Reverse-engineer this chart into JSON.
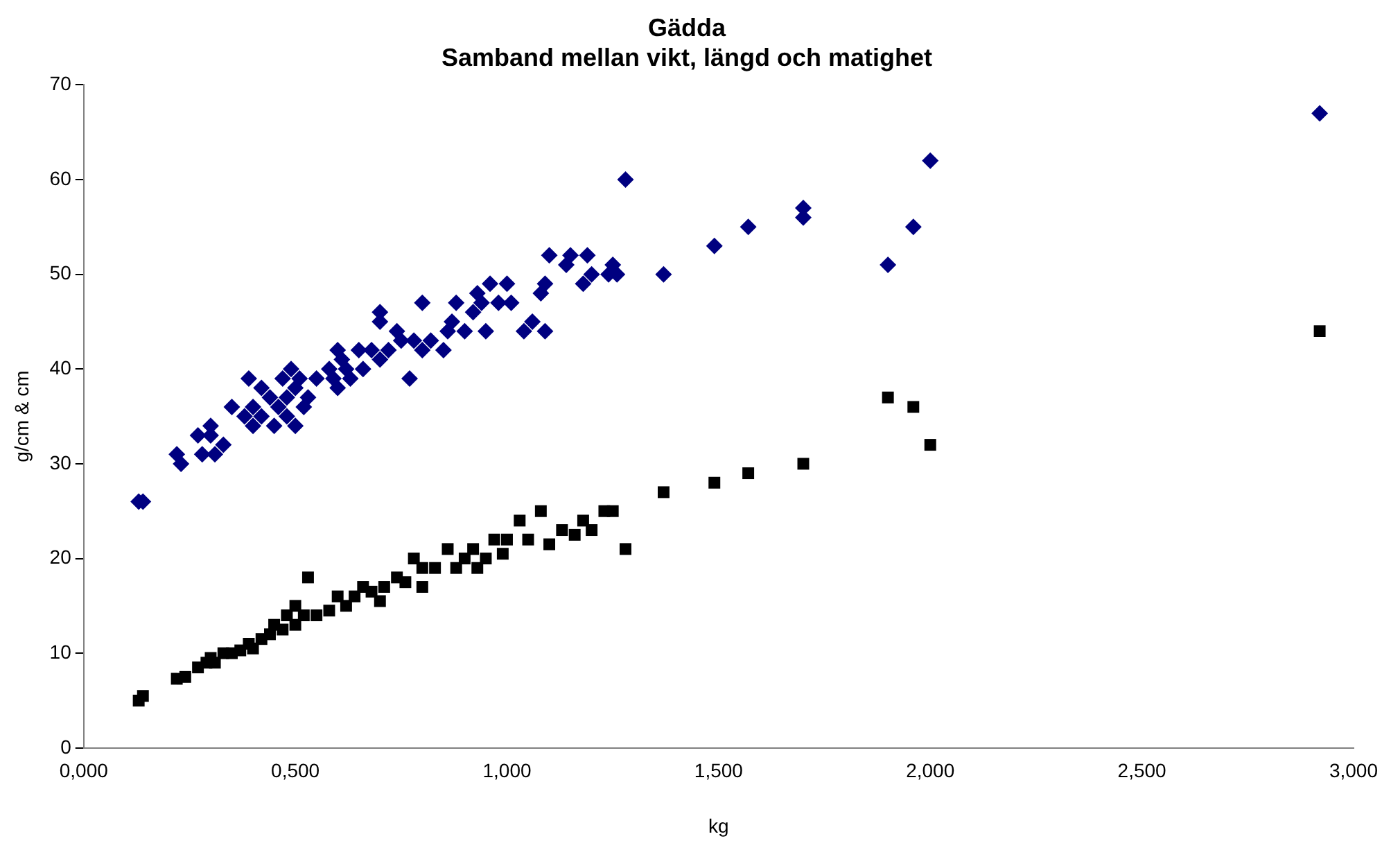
{
  "chart_data": {
    "type": "scatter",
    "title": "Gädda",
    "subtitle": "Samband mellan vikt, längd och matighet",
    "xlabel": "kg",
    "ylabel": "g/cm & cm",
    "xlim": [
      0,
      3
    ],
    "ylim": [
      0,
      70
    ],
    "xticks": [
      {
        "value": 0,
        "label": "0,000"
      },
      {
        "value": 0.5,
        "label": "0,500"
      },
      {
        "value": 1,
        "label": "1,000"
      },
      {
        "value": 1.5,
        "label": "1,500"
      },
      {
        "value": 2,
        "label": "2,000"
      },
      {
        "value": 2.5,
        "label": "2,500"
      },
      {
        "value": 3,
        "label": "3,000"
      }
    ],
    "yticks": [
      0,
      10,
      20,
      30,
      40,
      50,
      60,
      70
    ],
    "grid": false,
    "legend": false,
    "series": [
      {
        "color": "#000080",
        "marker": "diamond",
        "x": [
          0.13,
          0.14,
          0.22,
          0.23,
          0.27,
          0.28,
          0.3,
          0.3,
          0.31,
          0.33,
          0.35,
          0.38,
          0.39,
          0.4,
          0.4,
          0.42,
          0.42,
          0.44,
          0.45,
          0.46,
          0.47,
          0.48,
          0.48,
          0.49,
          0.5,
          0.5,
          0.51,
          0.52,
          0.53,
          0.55,
          0.58,
          0.59,
          0.6,
          0.6,
          0.61,
          0.62,
          0.63,
          0.65,
          0.66,
          0.68,
          0.7,
          0.7,
          0.7,
          0.72,
          0.74,
          0.75,
          0.77,
          0.78,
          0.8,
          0.8,
          0.82,
          0.85,
          0.86,
          0.87,
          0.88,
          0.9,
          0.92,
          0.93,
          0.94,
          0.95,
          0.96,
          0.98,
          1.0,
          1.01,
          1.04,
          1.06,
          1.08,
          1.09,
          1.09,
          1.1,
          1.14,
          1.15,
          1.18,
          1.19,
          1.2,
          1.24,
          1.25,
          1.26,
          1.28,
          1.37,
          1.49,
          1.57,
          1.7,
          1.7,
          1.9,
          1.96,
          2.0,
          2.92
        ],
        "values": [
          26,
          26,
          31,
          30,
          33,
          31,
          34,
          33,
          31,
          32,
          36,
          35,
          39,
          34,
          36,
          35,
          38,
          37,
          34,
          36,
          39,
          35,
          37,
          40,
          34,
          38,
          39,
          36,
          37,
          39,
          40,
          39,
          38,
          42,
          41,
          40,
          39,
          42,
          40,
          42,
          41,
          45,
          46,
          42,
          44,
          43,
          39,
          43,
          47,
          42,
          43,
          42,
          44,
          45,
          47,
          44,
          46,
          48,
          47,
          44,
          49,
          47,
          49,
          47,
          44,
          45,
          48,
          44,
          49,
          52,
          51,
          52,
          49,
          52,
          50,
          50,
          51,
          50,
          60,
          50,
          53,
          55,
          57,
          56,
          51,
          55,
          62,
          67
        ]
      },
      {
        "color": "#000000",
        "marker": "square",
        "x": [
          0.13,
          0.14,
          0.22,
          0.24,
          0.27,
          0.29,
          0.3,
          0.31,
          0.33,
          0.35,
          0.37,
          0.39,
          0.4,
          0.42,
          0.44,
          0.45,
          0.47,
          0.48,
          0.5,
          0.5,
          0.52,
          0.53,
          0.55,
          0.58,
          0.6,
          0.62,
          0.64,
          0.66,
          0.68,
          0.7,
          0.71,
          0.74,
          0.76,
          0.78,
          0.8,
          0.8,
          0.83,
          0.86,
          0.88,
          0.9,
          0.92,
          0.93,
          0.95,
          0.97,
          0.99,
          1.0,
          1.03,
          1.05,
          1.08,
          1.1,
          1.13,
          1.16,
          1.18,
          1.2,
          1.23,
          1.25,
          1.28,
          1.37,
          1.49,
          1.57,
          1.7,
          1.9,
          1.96,
          2.0,
          2.92
        ],
        "values": [
          5,
          5.5,
          7.3,
          7.5,
          8.5,
          9,
          9.5,
          9,
          10,
          10,
          10.3,
          11,
          10.5,
          11.5,
          12,
          13,
          12.5,
          14,
          13,
          15,
          14,
          18,
          14,
          14.5,
          16,
          15,
          16,
          17,
          16.5,
          15.5,
          17,
          18,
          17.5,
          20,
          17,
          19,
          19,
          21,
          19,
          20,
          21,
          19,
          20,
          22,
          20.5,
          22,
          24,
          22,
          25,
          21.5,
          23,
          22.5,
          24,
          23,
          25,
          25,
          21,
          27,
          28,
          29,
          30,
          37,
          36,
          32,
          44
        ]
      }
    ]
  }
}
